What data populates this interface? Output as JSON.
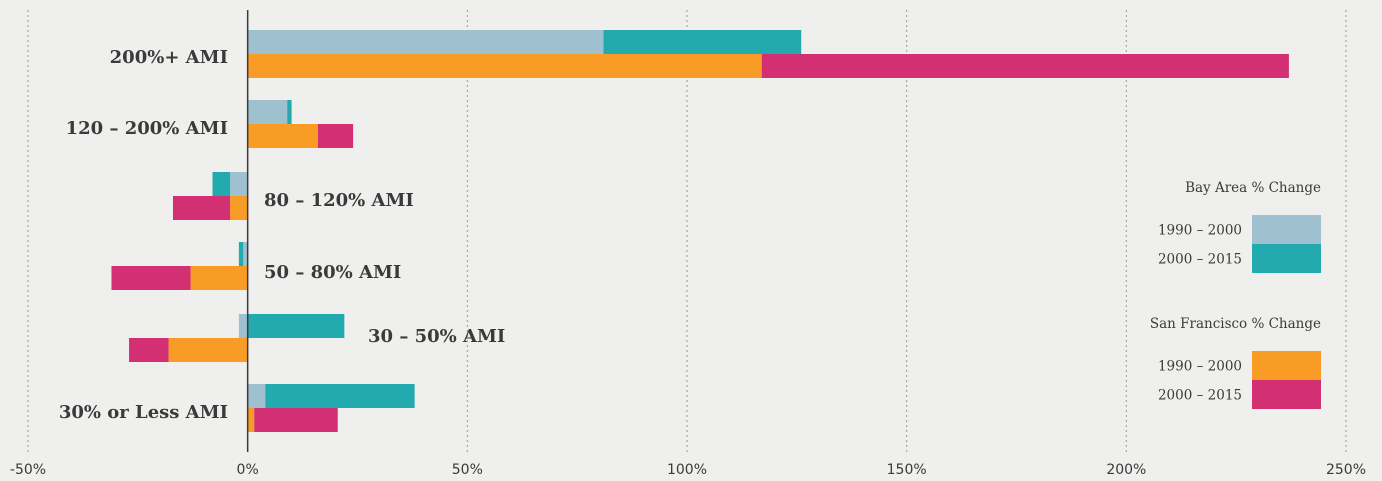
{
  "chart_data": {
    "type": "bar",
    "orientation": "horizontal",
    "stacked": true,
    "categories": [
      "200%+ AMI",
      "120 – 200% AMI",
      "80 – 120% AMI",
      "50 – 80% AMI",
      "30 – 50% AMI",
      "30% or Less AMI"
    ],
    "xlim": [
      -50,
      250
    ],
    "xticks": [
      -50,
      0,
      50,
      100,
      150,
      200,
      250
    ],
    "xtick_labels": [
      "-50%",
      "0%",
      "50%",
      "100%",
      "150%",
      "200%",
      "250%"
    ],
    "grid": "vertical dotted",
    "legend_placement": "right",
    "groups": [
      {
        "name": "Bay Area % Change",
        "series": [
          {
            "name": "1990 – 2000",
            "color": "#9fc0cf",
            "values": [
              81,
              9,
              -4,
              -1,
              -2,
              4
            ]
          },
          {
            "name": "2000 – 2015",
            "color": "#22aaaf",
            "values": [
              45,
              1,
              -4,
              -1,
              22,
              34
            ]
          }
        ]
      },
      {
        "name": "San Francisco % Change",
        "series": [
          {
            "name": "1990 – 2000",
            "color": "#f99c25",
            "values": [
              117,
              16,
              -4,
              -13,
              -18,
              1.5
            ]
          },
          {
            "name": "2000 – 2015",
            "color": "#d32f73",
            "values": [
              120,
              8,
              -13,
              -18,
              -9,
              19
            ]
          }
        ]
      }
    ]
  }
}
